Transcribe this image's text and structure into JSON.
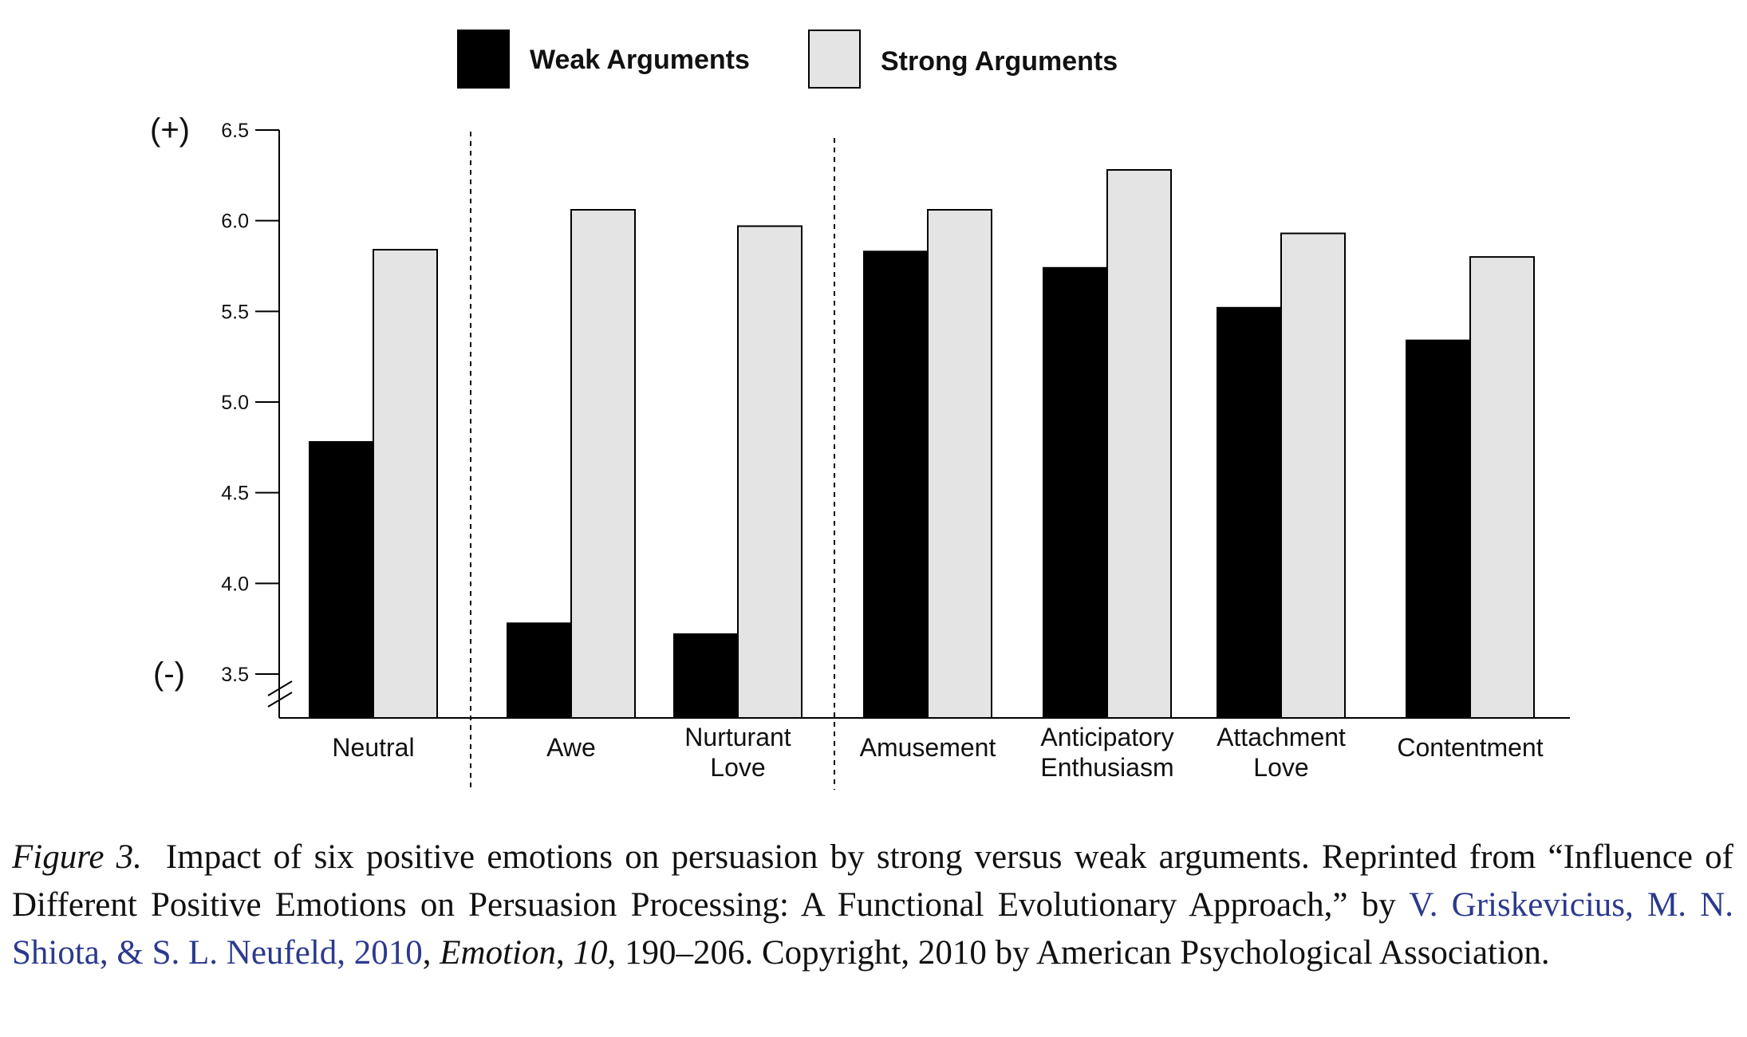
{
  "chart_data": {
    "type": "bar",
    "categories": [
      "Neutral",
      "Awe",
      "Nurturant Love",
      "Amusement",
      "Anticipatory Enthusiasm",
      "Attachment Love",
      "Contentment"
    ],
    "category_lines": [
      [
        "Neutral"
      ],
      [
        "Awe"
      ],
      [
        "Nurturant",
        "Love"
      ],
      [
        "Amusement"
      ],
      [
        "Anticipatory",
        "Enthusiasm"
      ],
      [
        "Attachment",
        "Love"
      ],
      [
        "Contentment"
      ]
    ],
    "series": [
      {
        "name": "Weak Arguments",
        "color": "#000000",
        "values": [
          4.78,
          3.78,
          3.72,
          5.83,
          5.74,
          5.52,
          5.34
        ]
      },
      {
        "name": "Strong Arguments",
        "color": "#e4e4e4",
        "values": [
          5.84,
          6.06,
          5.97,
          6.06,
          6.28,
          5.93,
          5.8
        ]
      }
    ],
    "y_ticks": [
      "3.5",
      "4.0",
      "4.5",
      "5.0",
      "5.5",
      "6.0",
      "6.5"
    ],
    "ylim": [
      3.5,
      6.5
    ],
    "y_top_marker": "(+)",
    "y_bottom_marker": "(-)",
    "axis_break": true,
    "group_dividers_after": [
      "Neutral",
      "Nurturant Love"
    ],
    "legend_position": "top-center",
    "grid": false
  },
  "caption": {
    "figure_number": "Figure 3.",
    "text_1": "Impact of six positive emotions on persuasion by strong versus weak arguments. Reprinted from “Influence of Different Positive Emotions on Persuasion Processing: A Functional Evolutionary Approach,” by",
    "citation_authors": "V. Griskevicius, M. N. Shiota, & S. L. Neufeld, 2010",
    "sep_1": ",",
    "journal": "Emotion",
    "sep_2": ",",
    "volume": "10",
    "text_2": ", 190–206. Copyright, 2010 by American Psychological Association."
  }
}
